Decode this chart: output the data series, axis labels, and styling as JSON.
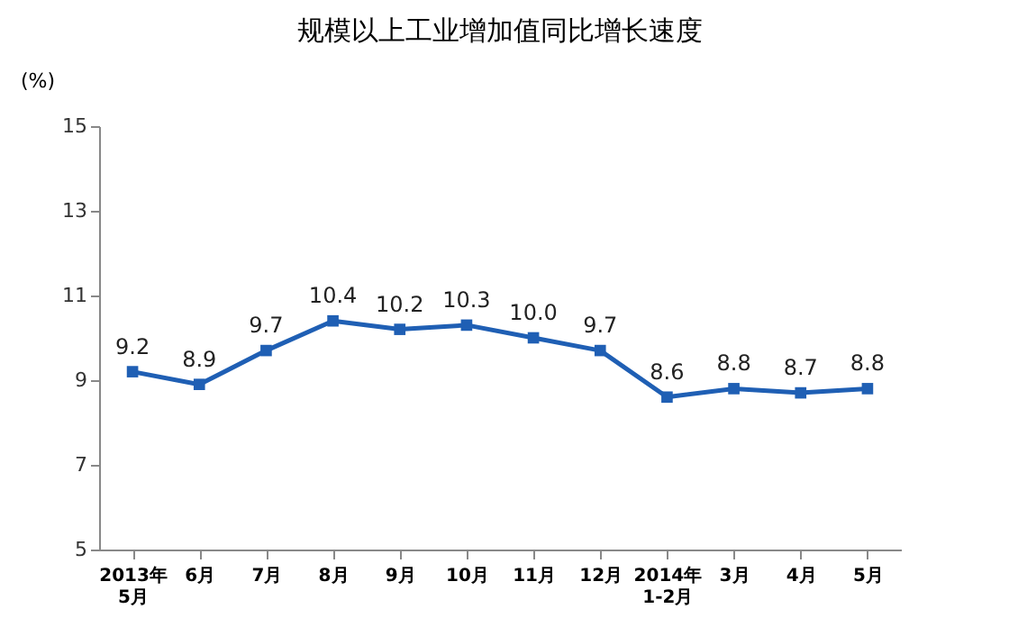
{
  "chart_data": {
    "type": "line",
    "title": "规模以上工业增加值同比增长速度",
    "ylabel": "(%)",
    "categories": [
      "2013年\n5月",
      "6月",
      "7月",
      "8月",
      "9月",
      "10月",
      "11月",
      "12月",
      "2014年\n1-2月",
      "3月",
      "4月",
      "5月"
    ],
    "series": [
      {
        "color": "#1f5fb4",
        "values": [
          9.2,
          8.9,
          9.7,
          10.4,
          10.2,
          10.3,
          10.0,
          9.7,
          8.6,
          8.8,
          8.7,
          8.8
        ]
      }
    ],
    "value_labels": [
      "9.2",
      "8.9",
      "9.7",
      "10.4",
      "10.2",
      "10.3",
      "10.0",
      "9.7",
      "8.6",
      "8.8",
      "8.7",
      "8.8"
    ],
    "ylim": [
      5,
      15
    ],
    "yticks": [
      5,
      7,
      9,
      11,
      13,
      15
    ],
    "marker": "square",
    "grid": false
  }
}
